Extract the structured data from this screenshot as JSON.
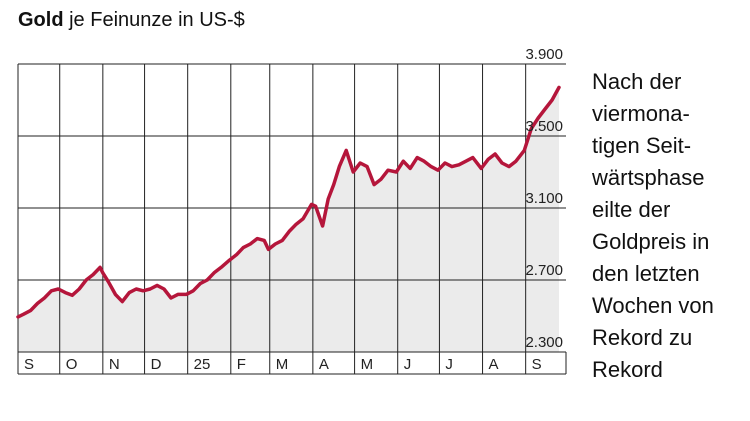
{
  "header": {
    "title_bold": "Gold",
    "title_rest": "je Feinunze in US-$"
  },
  "note_lines": [
    "Nach der",
    "viermona-",
    "tigen Seit-",
    "wärtsphase",
    "eilte der",
    "Goldpreis in",
    "den letzten",
    "Wochen von",
    "Rekord zu",
    "Rekord"
  ],
  "colors": {
    "line": "#b5163b",
    "area": "#ebebeb",
    "grid": "#222222"
  },
  "chart_data": {
    "type": "area",
    "ylim": [
      2300,
      3900
    ],
    "yticks": [
      2300,
      2700,
      3100,
      3500,
      3900
    ],
    "ytick_labels": [
      "2.300",
      "2.700",
      "3.100",
      "3.500",
      "3.900"
    ],
    "month_labels": [
      "S",
      "O",
      "N",
      "D",
      "25",
      "F",
      "M",
      "A",
      "M",
      "J",
      "J",
      "A",
      "S"
    ],
    "x": [
      "2024-09-01",
      "2024-09-05",
      "2024-09-10",
      "2024-09-15",
      "2024-09-20",
      "2024-09-25",
      "2024-09-30",
      "2024-10-05",
      "2024-10-10",
      "2024-10-15",
      "2024-10-20",
      "2024-10-25",
      "2024-10-30",
      "2024-11-01",
      "2024-11-05",
      "2024-11-10",
      "2024-11-15",
      "2024-11-20",
      "2024-11-25",
      "2024-11-30",
      "2024-12-05",
      "2024-12-10",
      "2024-12-15",
      "2024-12-20",
      "2024-12-25",
      "2024-12-31",
      "2025-01-05",
      "2025-01-10",
      "2025-01-15",
      "2025-01-20",
      "2025-01-25",
      "2025-01-31",
      "2025-02-05",
      "2025-02-10",
      "2025-02-15",
      "2025-02-20",
      "2025-02-25",
      "2025-02-28",
      "2025-03-05",
      "2025-03-10",
      "2025-03-15",
      "2025-03-20",
      "2025-03-25",
      "2025-03-31",
      "2025-04-03",
      "2025-04-08",
      "2025-04-12",
      "2025-04-16",
      "2025-04-20",
      "2025-04-25",
      "2025-04-30",
      "2025-05-05",
      "2025-05-10",
      "2025-05-15",
      "2025-05-20",
      "2025-05-25",
      "2025-05-31",
      "2025-06-05",
      "2025-06-10",
      "2025-06-15",
      "2025-06-20",
      "2025-06-25",
      "2025-06-30",
      "2025-07-05",
      "2025-07-10",
      "2025-07-15",
      "2025-07-20",
      "2025-07-25",
      "2025-07-31",
      "2025-08-05",
      "2025-08-10",
      "2025-08-15",
      "2025-08-20",
      "2025-08-25",
      "2025-08-31",
      "2025-09-05",
      "2025-09-10",
      "2025-09-15",
      "2025-09-20",
      "2025-09-25"
    ],
    "values": [
      2495,
      2510,
      2530,
      2570,
      2600,
      2640,
      2650,
      2630,
      2615,
      2650,
      2700,
      2730,
      2770,
      2740,
      2690,
      2620,
      2580,
      2630,
      2650,
      2640,
      2650,
      2670,
      2650,
      2600,
      2620,
      2620,
      2640,
      2680,
      2700,
      2740,
      2770,
      2810,
      2840,
      2880,
      2900,
      2930,
      2920,
      2870,
      2900,
      2920,
      2970,
      3010,
      3040,
      3120,
      3110,
      3000,
      3150,
      3230,
      3330,
      3420,
      3300,
      3350,
      3330,
      3230,
      3260,
      3310,
      3300,
      3360,
      3320,
      3380,
      3360,
      3330,
      3310,
      3350,
      3330,
      3340,
      3360,
      3380,
      3320,
      3370,
      3400,
      3350,
      3330,
      3360,
      3420,
      3540,
      3600,
      3650,
      3700,
      3770
    ]
  }
}
